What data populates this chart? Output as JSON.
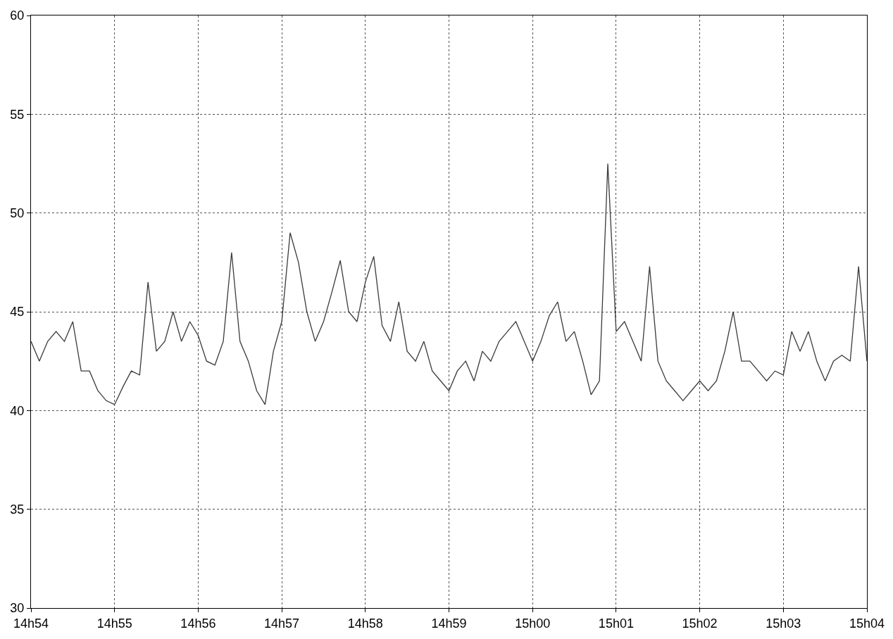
{
  "chart_data": {
    "type": "line",
    "categories": [
      "14h54",
      null,
      null,
      null,
      null,
      null,
      null,
      null,
      null,
      null,
      "14h55",
      null,
      null,
      null,
      null,
      null,
      null,
      null,
      null,
      null,
      "14h56",
      null,
      null,
      null,
      null,
      null,
      null,
      null,
      null,
      null,
      "14h57",
      null,
      null,
      null,
      null,
      null,
      null,
      null,
      null,
      null,
      "14h58",
      null,
      null,
      null,
      null,
      null,
      null,
      null,
      null,
      null,
      "14h59",
      null,
      null,
      null,
      null,
      null,
      null,
      null,
      null,
      null,
      "15h00",
      null,
      null,
      null,
      null,
      null,
      null,
      null,
      null,
      null,
      "15h01",
      null,
      null,
      null,
      null,
      null,
      null,
      null,
      null,
      null,
      "15h02",
      null,
      null,
      null,
      null,
      null,
      null,
      null,
      null,
      null,
      "15h03",
      null,
      null,
      null,
      null,
      null,
      null,
      null,
      null,
      null,
      "15h04"
    ],
    "ylim": [
      30,
      60
    ],
    "yticks": [
      30,
      35,
      40,
      45,
      50,
      55,
      60
    ],
    "grid": true,
    "line_style": "solid",
    "series": [
      {
        "color": "#3a3a3a",
        "values": [
          43.5,
          42.5,
          43.5,
          44,
          43.5,
          44.5,
          42,
          42,
          41,
          40.5,
          40.3,
          41.2,
          42,
          41.8,
          46.5,
          43,
          43.5,
          45,
          43.5,
          44.5,
          43.8,
          42.5,
          42.3,
          43.5,
          48,
          43.5,
          42.5,
          41,
          40.3,
          43,
          44.5,
          49,
          47.5,
          45,
          43.5,
          44.5,
          46,
          47.6,
          45,
          44.5,
          46.5,
          47.8,
          44.3,
          43.5,
          45.5,
          43,
          42.5,
          43.5,
          42,
          41.5,
          41,
          42,
          42.5,
          41.5,
          43,
          42.5,
          43.5,
          44,
          44.5,
          43.5,
          42.5,
          43.5,
          44.8,
          45.5,
          43.5,
          44,
          42.5,
          40.8,
          41.5,
          52.5,
          44,
          44.5,
          43.5,
          42.5,
          47.3,
          42.5,
          41.5,
          41,
          40.5,
          41,
          41.5,
          41,
          41.5,
          43,
          45,
          42.5,
          42.5,
          42,
          41.5,
          42,
          41.8,
          44,
          43,
          44,
          42.5,
          41.5,
          42.5,
          42.8,
          42.5,
          47.3,
          42.5
        ]
      }
    ]
  }
}
